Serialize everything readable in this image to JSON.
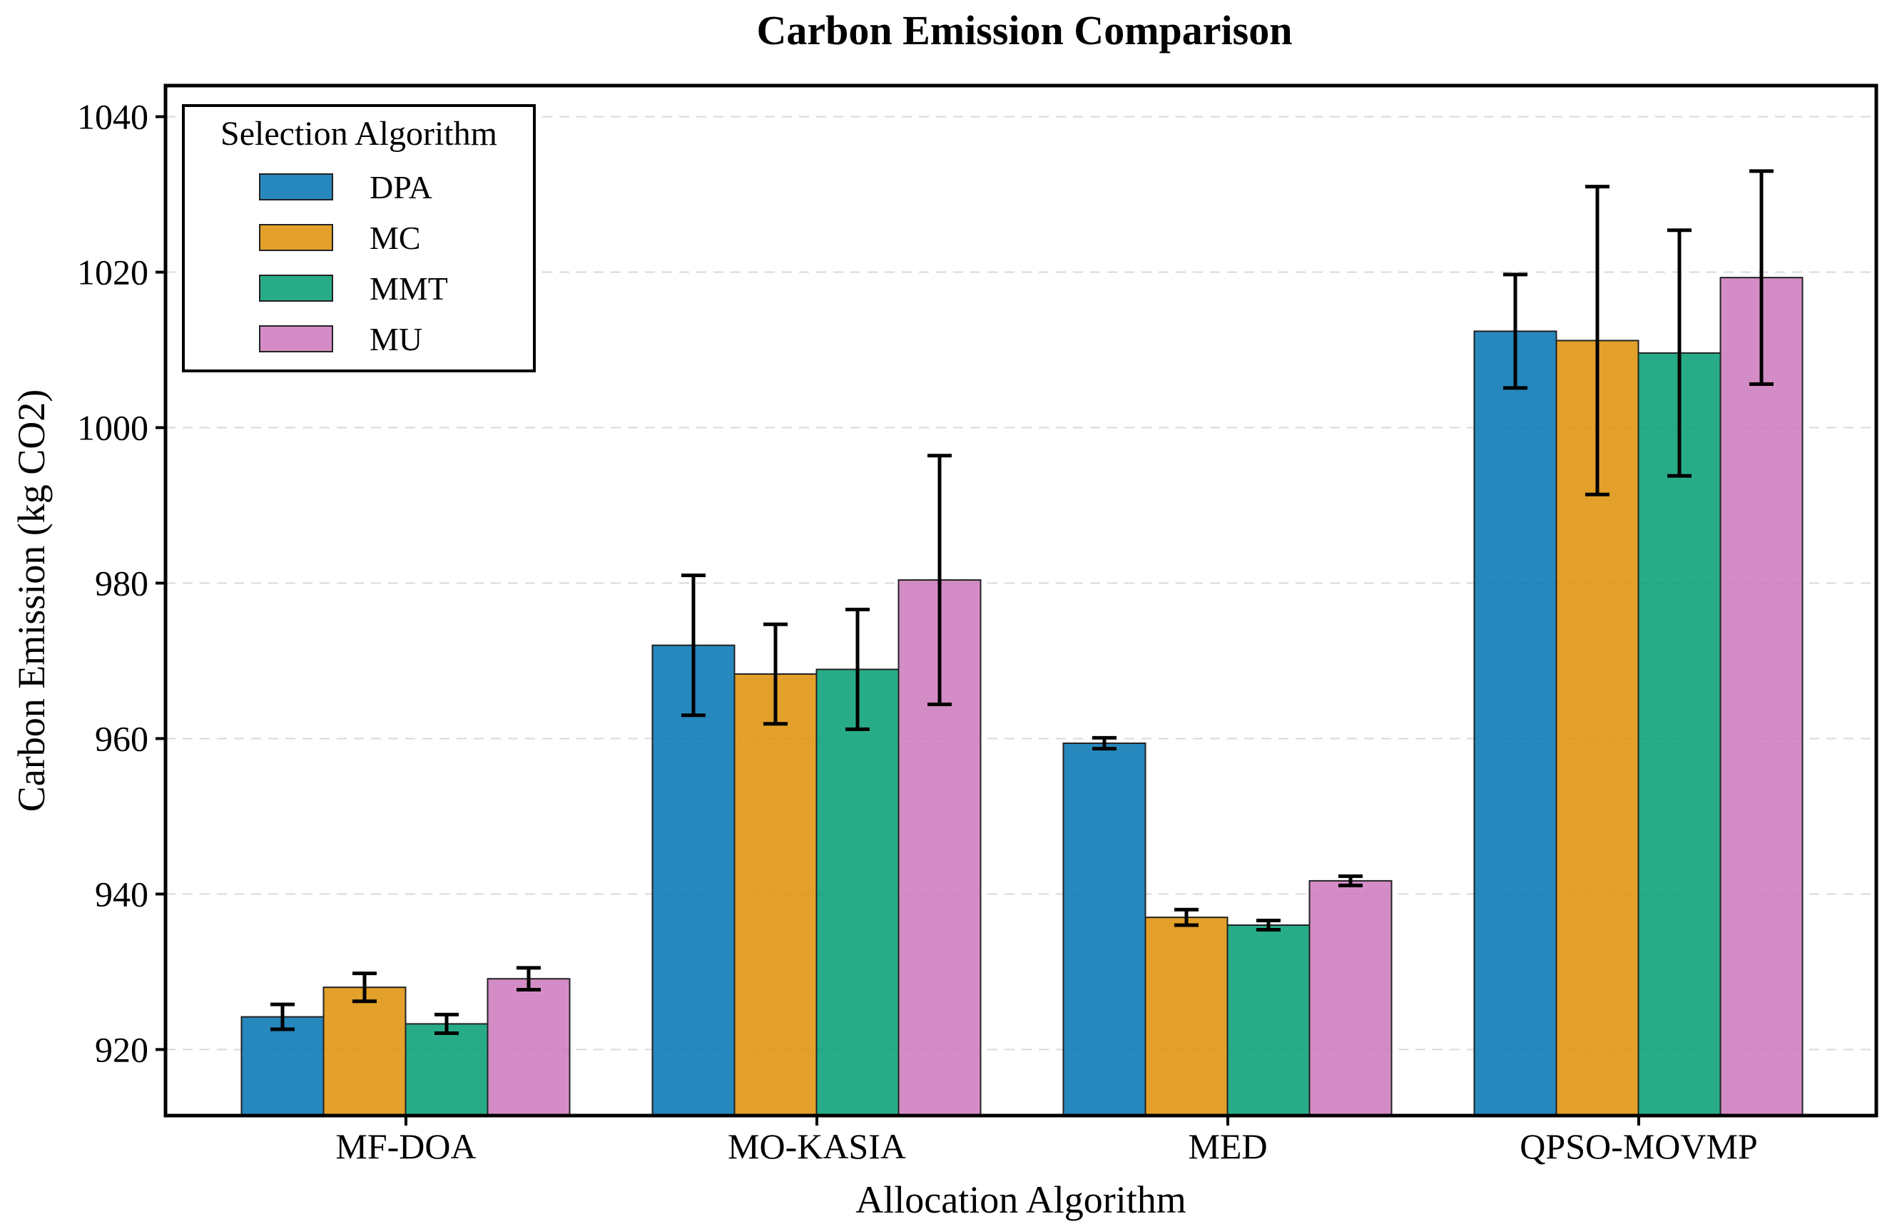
{
  "chart_data": {
    "type": "bar",
    "title": "Carbon Emission Comparison",
    "xlabel": "Allocation Algorithm",
    "ylabel": "Carbon Emission (kg CO2)",
    "ylim": [
      911.5,
      1044
    ],
    "yticks": [
      920,
      940,
      960,
      980,
      1000,
      1020,
      1040
    ],
    "grid": true,
    "legend_title": "Selection Algorithm",
    "legend_position": "top-left",
    "categories": [
      "MF-DOA",
      "MO-KASIA",
      "MED",
      "QPSO-MOVMP"
    ],
    "series": [
      {
        "name": "DPA",
        "color": "#0173b2",
        "values": [
          924.2,
          972.0,
          959.4,
          1012.4
        ],
        "errors": [
          1.6,
          9.0,
          0.7,
          7.3
        ]
      },
      {
        "name": "MC",
        "color": "#de8f05",
        "values": [
          928.0,
          968.3,
          937.0,
          1011.2
        ],
        "errors": [
          1.8,
          6.4,
          1.0,
          19.8
        ]
      },
      {
        "name": "MMT",
        "color": "#029e73",
        "values": [
          923.3,
          968.9,
          936.0,
          1009.6
        ],
        "errors": [
          1.2,
          7.7,
          0.6,
          15.8
        ]
      },
      {
        "name": "MU",
        "color": "#cc78bc",
        "values": [
          929.1,
          980.4,
          941.7,
          1019.3
        ],
        "errors": [
          1.4,
          16.0,
          0.6,
          13.7
        ]
      }
    ]
  }
}
